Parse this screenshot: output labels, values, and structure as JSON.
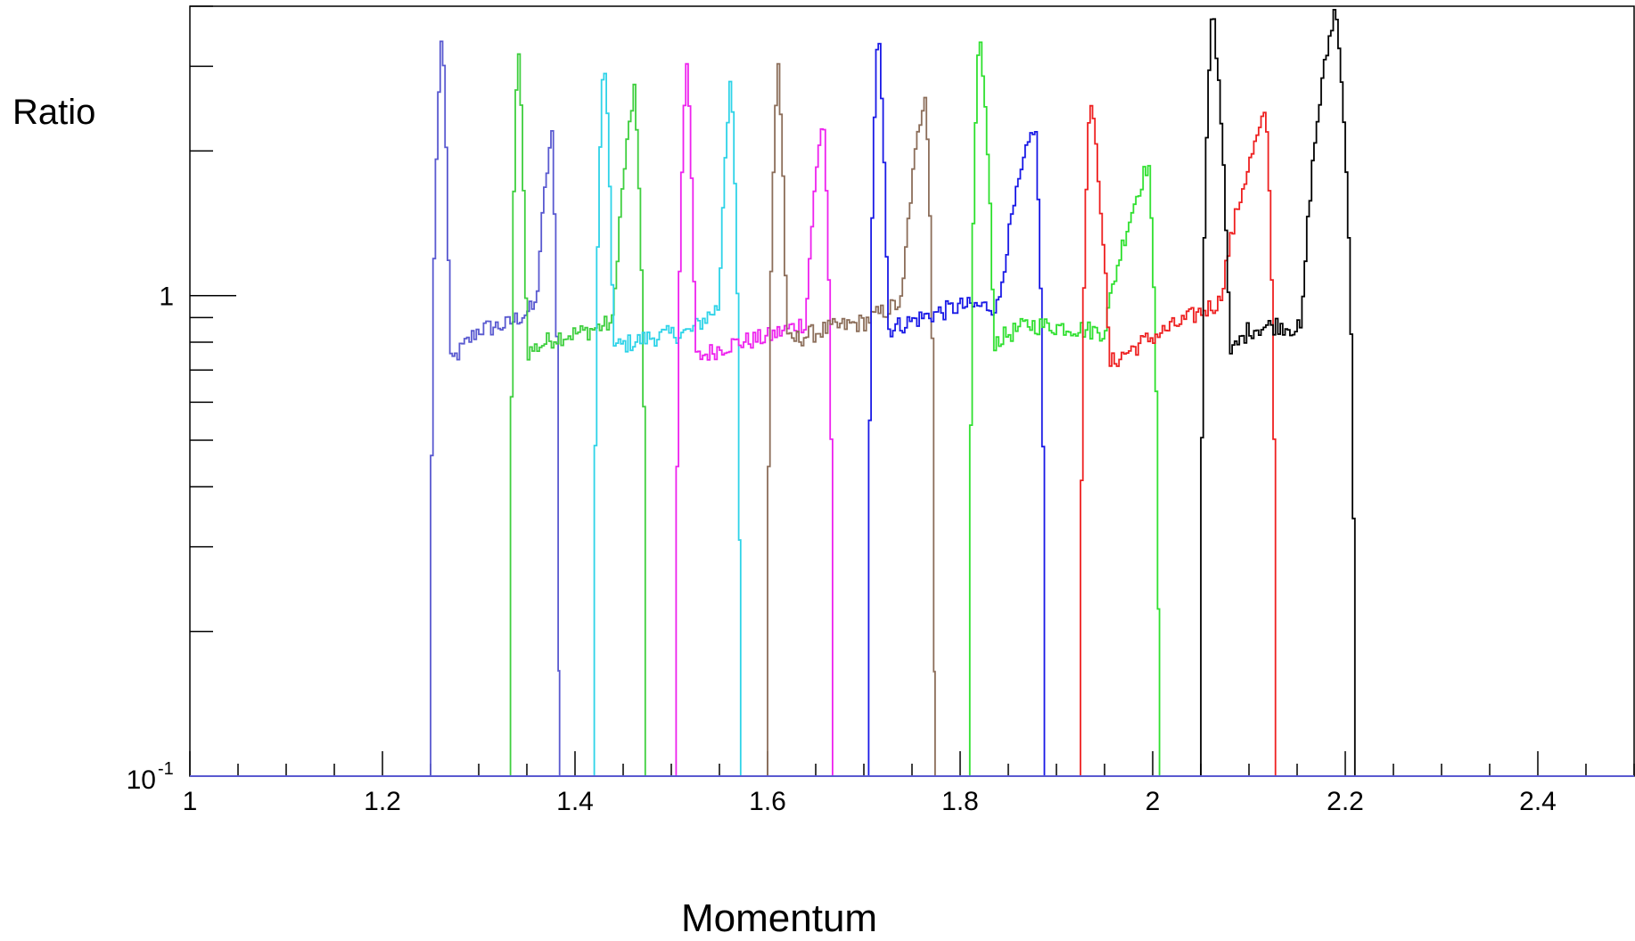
{
  "chart_data": {
    "type": "line",
    "title": "",
    "xlabel": "Momentum",
    "ylabel": "Ratio",
    "xlim": [
      1.0,
      2.5
    ],
    "ylim": [
      0.1,
      4.0
    ],
    "y_scale": "log",
    "x_ticks": [
      "1",
      "1.2",
      "1.4",
      "1.6",
      "1.8",
      "2",
      "2.2",
      "2.4"
    ],
    "y_ticks": [
      "10^-1",
      "1"
    ],
    "grid": false,
    "legend": "none",
    "series": [
      {
        "color": "#5a5ad0",
        "x": [
          1.25,
          1.262,
          1.27,
          1.3,
          1.33,
          1.36,
          1.376,
          1.384
        ],
        "y": [
          0.1,
          3.6,
          0.72,
          0.85,
          0.87,
          0.95,
          2.2,
          0.1
        ]
      },
      {
        "color": "#3fcf3f",
        "x": [
          1.333,
          1.341,
          1.35,
          1.38,
          1.41,
          1.44,
          1.462,
          1.474
        ],
        "y": [
          0.1,
          3.4,
          0.76,
          0.82,
          0.84,
          0.88,
          2.7,
          0.1
        ]
      },
      {
        "color": "#2ed3e8",
        "x": [
          1.42,
          1.43,
          1.44,
          1.48,
          1.52,
          1.55,
          1.562,
          1.572
        ],
        "y": [
          0.1,
          3.2,
          0.78,
          0.82,
          0.84,
          0.95,
          2.9,
          0.1
        ]
      },
      {
        "color": "#ee22ee",
        "x": [
          1.505,
          1.516,
          1.525,
          1.56,
          1.6,
          1.64,
          1.658,
          1.668
        ],
        "y": [
          0.1,
          3.1,
          0.74,
          0.79,
          0.82,
          0.88,
          2.4,
          0.1
        ]
      },
      {
        "color": "#8c6e5a",
        "x": [
          1.6,
          1.611,
          1.62,
          1.66,
          1.7,
          1.74,
          1.764,
          1.774
        ],
        "y": [
          0.1,
          3.1,
          0.8,
          0.85,
          0.88,
          0.97,
          2.7,
          0.1
        ]
      },
      {
        "color": "#1a1ae6",
        "x": [
          1.705,
          1.715,
          1.725,
          1.76,
          1.8,
          1.84,
          1.878,
          1.888
        ],
        "y": [
          0.1,
          3.7,
          0.85,
          0.9,
          0.95,
          0.95,
          2.3,
          0.1
        ]
      },
      {
        "color": "#30e030",
        "x": [
          1.81,
          1.82,
          1.835,
          1.87,
          1.91,
          1.95,
          1.996,
          2.007
        ],
        "y": [
          0.1,
          3.6,
          0.8,
          0.87,
          0.86,
          0.84,
          1.9,
          0.1
        ]
      },
      {
        "color": "#ee2020",
        "x": [
          1.925,
          1.935,
          1.955,
          1.99,
          2.03,
          2.07,
          2.118,
          2.128
        ],
        "y": [
          0.1,
          2.6,
          0.72,
          0.8,
          0.88,
          0.97,
          2.4,
          0.1
        ]
      },
      {
        "color": "#000000",
        "x": [
          2.05,
          2.062,
          2.08,
          2.1,
          2.13,
          2.155,
          2.19,
          2.21
        ],
        "y": [
          0.1,
          4.0,
          0.75,
          0.85,
          0.87,
          0.85,
          4.0,
          0.1
        ]
      }
    ]
  }
}
